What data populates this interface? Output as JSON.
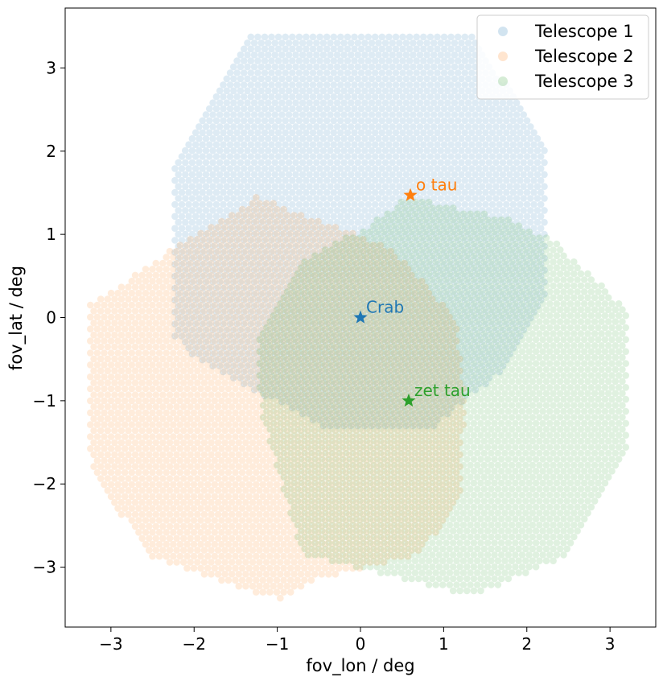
{
  "chart_data": {
    "type": "scatter",
    "title": "",
    "xlabel": "fov_lon / deg",
    "ylabel": "fov_lat / deg",
    "xlim": [
      -3.55,
      3.55
    ],
    "ylim": [
      -3.72,
      3.72
    ],
    "xticks": [
      -3,
      -2,
      -1,
      0,
      1,
      2,
      3
    ],
    "yticks": [
      -3,
      -2,
      -1,
      0,
      1,
      2,
      3
    ],
    "xtick_labels": [
      "−3",
      "−2",
      "−1",
      "0",
      "1",
      "2",
      "3"
    ],
    "ytick_labels": [
      "−3",
      "−2",
      "−1",
      "0",
      "1",
      "2",
      "3"
    ],
    "grid": false,
    "legend_position": "top-right",
    "marker_alpha": 0.15,
    "series": [
      {
        "name": "Telescope 1",
        "color": "#1f77b4",
        "shape": "irregular hexagonal pixel camera",
        "outline": [
          [
            -1.37,
            3.4
          ],
          [
            1.37,
            3.4
          ],
          [
            2.23,
            2.05
          ],
          [
            2.23,
            0.3
          ],
          [
            1.75,
            -0.6
          ],
          [
            0.9,
            -1.3
          ],
          [
            -0.35,
            -1.35
          ],
          [
            -1.05,
            -1.0
          ],
          [
            -2.05,
            -0.45
          ],
          [
            -2.25,
            -0.2
          ],
          [
            -2.25,
            1.9
          ]
        ]
      },
      {
        "name": "Telescope 2",
        "color": "#ff7f0e",
        "shape": "irregular hexagonal pixel camera",
        "outline": [
          [
            -1.25,
            1.45
          ],
          [
            0.35,
            0.85
          ],
          [
            1.15,
            0.0
          ],
          [
            1.25,
            -1.0
          ],
          [
            1.2,
            -2.2
          ],
          [
            0.7,
            -2.85
          ],
          [
            -0.5,
            -3.15
          ],
          [
            -0.95,
            -3.4
          ],
          [
            -2.5,
            -2.9
          ],
          [
            -3.1,
            -2.05
          ],
          [
            -3.25,
            -1.7
          ],
          [
            -3.25,
            0.15
          ],
          [
            -2.3,
            0.8
          ]
        ]
      },
      {
        "name": "Telescope 3",
        "color": "#2ca02c",
        "shape": "irregular hexagonal pixel camera",
        "outline": [
          [
            0.55,
            1.45
          ],
          [
            1.75,
            1.2
          ],
          [
            2.35,
            0.9
          ],
          [
            3.2,
            0.1
          ],
          [
            3.2,
            -1.65
          ],
          [
            2.5,
            -2.85
          ],
          [
            1.35,
            -3.35
          ],
          [
            0.1,
            -3.05
          ],
          [
            -0.7,
            -2.85
          ],
          [
            -1.2,
            -1.1
          ],
          [
            -1.25,
            -0.25
          ],
          [
            -0.7,
            0.7
          ],
          [
            0.1,
            1.1
          ]
        ]
      }
    ],
    "annotations": [
      {
        "label": "Crab",
        "x": 0.0,
        "y": 0.0,
        "marker": "star",
        "color": "#1f77b4"
      },
      {
        "label": "o tau",
        "x": 0.6,
        "y": 1.47,
        "marker": "star",
        "color": "#ff7f0e"
      },
      {
        "label": "zet tau",
        "x": 0.58,
        "y": -1.0,
        "marker": "star",
        "color": "#2ca02c"
      }
    ]
  }
}
